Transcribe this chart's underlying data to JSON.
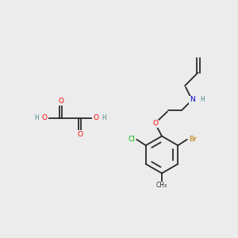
{
  "bg_color": "#ececec",
  "bond_color": "#2a2a2a",
  "bond_lw": 1.3,
  "atom_colors": {
    "O": "#ff0000",
    "N": "#0000cc",
    "Cl": "#00bb00",
    "Br": "#bb7700",
    "H": "#4a8888",
    "C": "#2a2a2a"
  },
  "font_size": 6.5,
  "font_size_small": 5.5
}
